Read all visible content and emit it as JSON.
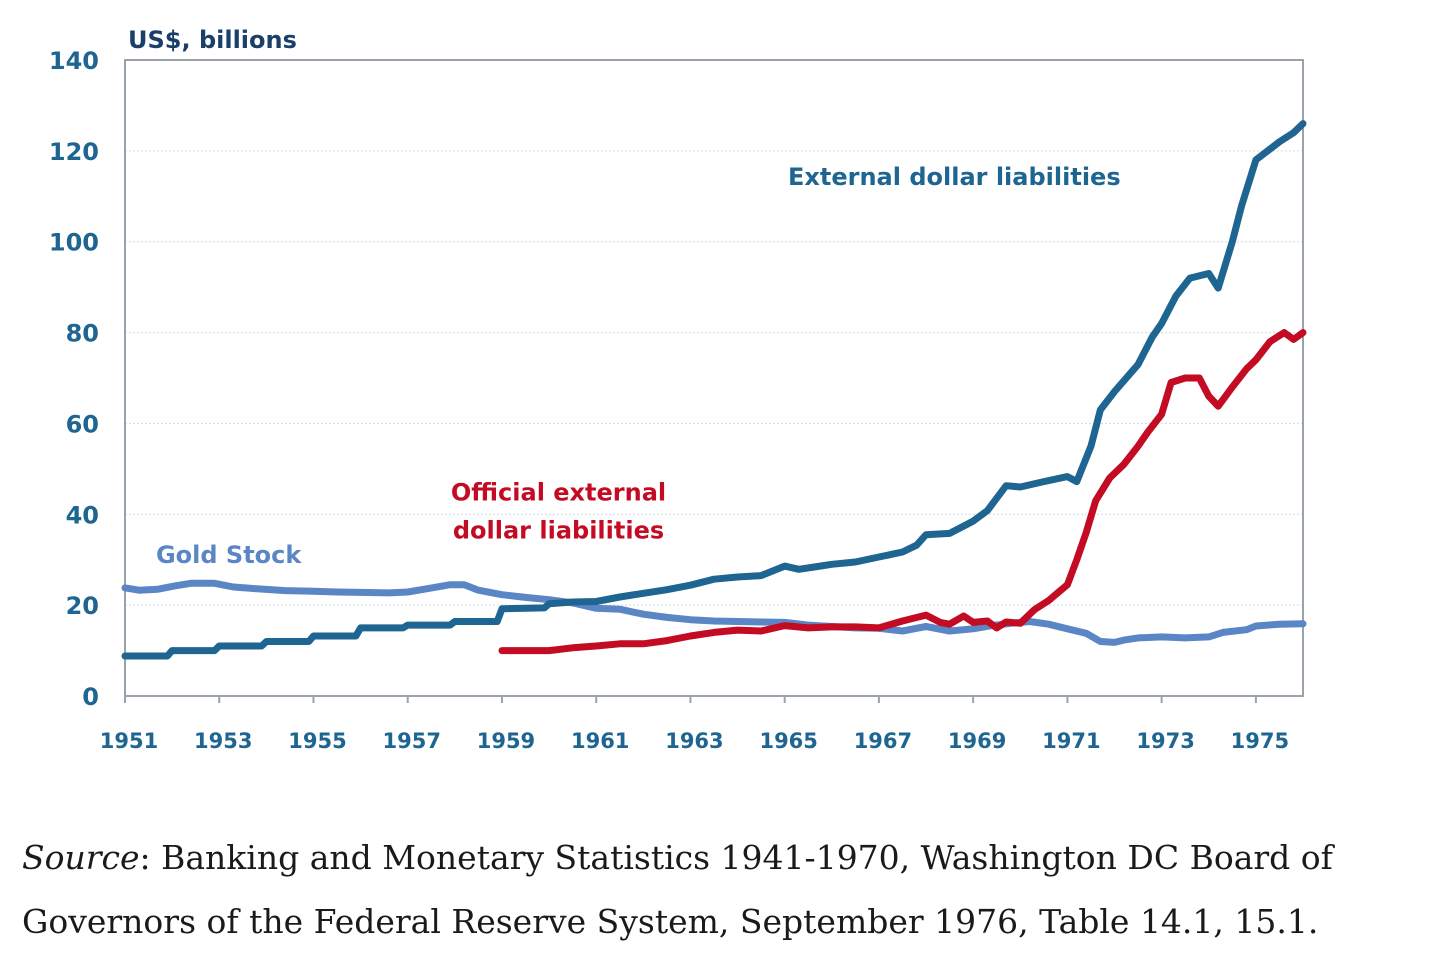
{
  "caption": {
    "source_word": "Source",
    "text": ": Banking and Monetary Statistics 1941-1970, Washington DC Board of Governors of the Federal Reserve System, September 1976, Table 14.1, 15.1."
  },
  "chart_data": {
    "type": "line",
    "title": "",
    "ylabel": "US$, billions",
    "xlabel": "",
    "xlim": [
      1951,
      1976
    ],
    "ylim": [
      0,
      140
    ],
    "yticks": [
      0,
      20,
      40,
      60,
      80,
      100,
      120,
      140
    ],
    "xticks": [
      1951,
      1953,
      1955,
      1957,
      1959,
      1961,
      1963,
      1965,
      1967,
      1969,
      1971,
      1973,
      1975
    ],
    "grid": true,
    "legend": "none",
    "series": [
      {
        "name": "Gold Stock",
        "color": "#5b86c5",
        "label_color": "#5b86c5",
        "points": [
          [
            1951.0,
            23.8
          ],
          [
            1951.3,
            23.3
          ],
          [
            1951.7,
            23.5
          ],
          [
            1952.1,
            24.3
          ],
          [
            1952.4,
            24.8
          ],
          [
            1952.9,
            24.8
          ],
          [
            1953.3,
            24.0
          ],
          [
            1953.8,
            23.6
          ],
          [
            1954.4,
            23.2
          ],
          [
            1954.9,
            23.1
          ],
          [
            1955.5,
            22.9
          ],
          [
            1956.0,
            22.8
          ],
          [
            1956.6,
            22.7
          ],
          [
            1957.0,
            22.9
          ],
          [
            1957.4,
            23.6
          ],
          [
            1957.9,
            24.5
          ],
          [
            1958.2,
            24.5
          ],
          [
            1958.5,
            23.3
          ],
          [
            1959.0,
            22.3
          ],
          [
            1959.5,
            21.7
          ],
          [
            1960.0,
            21.2
          ],
          [
            1960.5,
            20.5
          ],
          [
            1961.0,
            19.3
          ],
          [
            1961.5,
            19.1
          ],
          [
            1962.0,
            18.0
          ],
          [
            1962.5,
            17.3
          ],
          [
            1963.0,
            16.8
          ],
          [
            1963.5,
            16.5
          ],
          [
            1964.0,
            16.4
          ],
          [
            1964.5,
            16.3
          ],
          [
            1965.0,
            16.2
          ],
          [
            1965.5,
            15.6
          ],
          [
            1966.0,
            15.3
          ],
          [
            1966.5,
            15.0
          ],
          [
            1967.0,
            14.9
          ],
          [
            1967.5,
            14.3
          ],
          [
            1968.0,
            15.3
          ],
          [
            1968.5,
            14.3
          ],
          [
            1969.0,
            14.8
          ],
          [
            1969.4,
            15.5
          ],
          [
            1969.8,
            16.0
          ],
          [
            1970.2,
            16.4
          ],
          [
            1970.6,
            15.8
          ],
          [
            1971.0,
            14.8
          ],
          [
            1971.4,
            13.8
          ],
          [
            1971.7,
            12.0
          ],
          [
            1972.0,
            11.8
          ],
          [
            1972.2,
            12.3
          ],
          [
            1972.5,
            12.8
          ],
          [
            1973.0,
            13.0
          ],
          [
            1973.5,
            12.8
          ],
          [
            1974.0,
            13.0
          ],
          [
            1974.3,
            14.0
          ],
          [
            1974.8,
            14.6
          ],
          [
            1975.0,
            15.4
          ],
          [
            1975.5,
            15.8
          ],
          [
            1976.0,
            15.9
          ]
        ]
      },
      {
        "name": "External dollar liabilities",
        "color": "#1f6591",
        "label_color": "#1f6591",
        "points": [
          [
            1951.0,
            8.8
          ],
          [
            1951.9,
            8.8
          ],
          [
            1952.0,
            10.0
          ],
          [
            1952.9,
            10.0
          ],
          [
            1953.0,
            11.0
          ],
          [
            1953.9,
            11.0
          ],
          [
            1954.0,
            12.0
          ],
          [
            1954.9,
            12.0
          ],
          [
            1955.0,
            13.2
          ],
          [
            1955.9,
            13.2
          ],
          [
            1956.0,
            15.0
          ],
          [
            1956.9,
            15.0
          ],
          [
            1957.0,
            15.6
          ],
          [
            1957.9,
            15.6
          ],
          [
            1958.0,
            16.4
          ],
          [
            1958.9,
            16.4
          ],
          [
            1959.0,
            19.2
          ],
          [
            1959.9,
            19.4
          ],
          [
            1960.0,
            20.3
          ],
          [
            1960.5,
            20.7
          ],
          [
            1961.0,
            20.8
          ],
          [
            1961.5,
            21.8
          ],
          [
            1962.0,
            22.6
          ],
          [
            1962.5,
            23.4
          ],
          [
            1963.0,
            24.4
          ],
          [
            1963.5,
            25.7
          ],
          [
            1964.0,
            26.2
          ],
          [
            1964.5,
            26.5
          ],
          [
            1965.0,
            28.6
          ],
          [
            1965.3,
            27.9
          ],
          [
            1965.7,
            28.5
          ],
          [
            1966.0,
            29.0
          ],
          [
            1966.5,
            29.5
          ],
          [
            1967.0,
            30.6
          ],
          [
            1967.5,
            31.7
          ],
          [
            1967.8,
            33.2
          ],
          [
            1968.0,
            35.5
          ],
          [
            1968.5,
            35.8
          ],
          [
            1969.0,
            38.5
          ],
          [
            1969.3,
            40.8
          ],
          [
            1969.7,
            46.3
          ],
          [
            1970.0,
            46.0
          ],
          [
            1970.5,
            47.2
          ],
          [
            1971.0,
            48.3
          ],
          [
            1971.2,
            47.2
          ],
          [
            1971.5,
            55.0
          ],
          [
            1971.7,
            63.0
          ],
          [
            1972.0,
            67.0
          ],
          [
            1972.5,
            73.0
          ],
          [
            1972.8,
            79.0
          ],
          [
            1973.0,
            82.0
          ],
          [
            1973.3,
            88.0
          ],
          [
            1973.6,
            92.0
          ],
          [
            1974.0,
            93.0
          ],
          [
            1974.2,
            89.8
          ],
          [
            1974.5,
            100.0
          ],
          [
            1974.7,
            108.0
          ],
          [
            1975.0,
            118.0
          ],
          [
            1975.5,
            122.0
          ],
          [
            1975.8,
            124.0
          ],
          [
            1976.0,
            126.0
          ]
        ]
      },
      {
        "name": "Official external dollar liabilities",
        "color": "#c40b24",
        "label_color": "#c40b24",
        "points": [
          [
            1959.0,
            10.0
          ],
          [
            1959.5,
            10.0
          ],
          [
            1960.0,
            10.0
          ],
          [
            1960.5,
            10.6
          ],
          [
            1961.0,
            11.0
          ],
          [
            1961.5,
            11.5
          ],
          [
            1962.0,
            11.5
          ],
          [
            1962.5,
            12.2
          ],
          [
            1963.0,
            13.2
          ],
          [
            1963.5,
            14.0
          ],
          [
            1964.0,
            14.5
          ],
          [
            1964.5,
            14.3
          ],
          [
            1965.0,
            15.5
          ],
          [
            1965.5,
            15.0
          ],
          [
            1966.0,
            15.2
          ],
          [
            1966.5,
            15.2
          ],
          [
            1967.0,
            15.0
          ],
          [
            1967.5,
            16.5
          ],
          [
            1968.0,
            17.8
          ],
          [
            1968.3,
            16.2
          ],
          [
            1968.5,
            15.8
          ],
          [
            1968.8,
            17.6
          ],
          [
            1969.0,
            16.2
          ],
          [
            1969.3,
            16.5
          ],
          [
            1969.5,
            15.0
          ],
          [
            1969.7,
            16.3
          ],
          [
            1970.0,
            16.0
          ],
          [
            1970.3,
            19.0
          ],
          [
            1970.6,
            21.0
          ],
          [
            1971.0,
            24.5
          ],
          [
            1971.2,
            30.0
          ],
          [
            1971.4,
            36.0
          ],
          [
            1971.6,
            43.0
          ],
          [
            1971.9,
            48.0
          ],
          [
            1972.2,
            51.0
          ],
          [
            1972.5,
            55.0
          ],
          [
            1972.7,
            58.0
          ],
          [
            1973.0,
            62.0
          ],
          [
            1973.2,
            69.0
          ],
          [
            1973.5,
            70.0
          ],
          [
            1973.8,
            70.0
          ],
          [
            1974.0,
            66.0
          ],
          [
            1974.2,
            63.8
          ],
          [
            1974.5,
            68.0
          ],
          [
            1974.8,
            72.0
          ],
          [
            1975.0,
            74.0
          ],
          [
            1975.3,
            78.0
          ],
          [
            1975.6,
            80.0
          ],
          [
            1975.8,
            78.5
          ],
          [
            1976.0,
            80.0
          ]
        ]
      }
    ],
    "annotations": [
      {
        "series": "External dollar liabilities",
        "lines": [
          "External dollar liabilities"
        ]
      },
      {
        "series": "Official external dollar liabilities",
        "lines": [
          "Official external",
          "dollar liabilities"
        ]
      },
      {
        "series": "Gold Stock",
        "lines": [
          "Gold Stock"
        ]
      }
    ]
  }
}
